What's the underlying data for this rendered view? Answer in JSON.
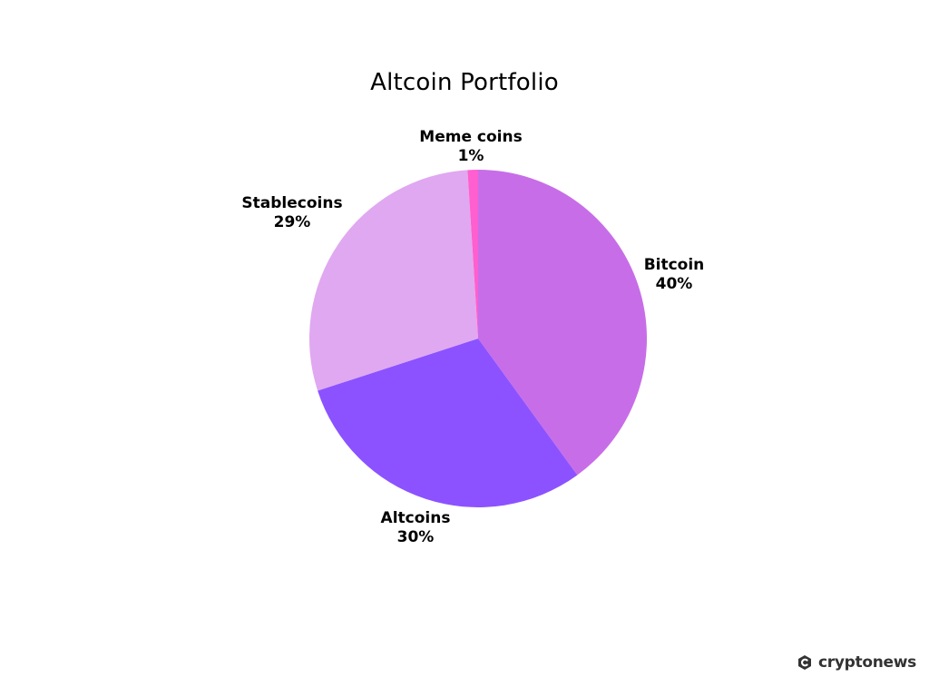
{
  "chart_data": {
    "type": "pie",
    "title": "Altcoin Portfolio",
    "slices": [
      {
        "label": "Bitcoin",
        "value": 40,
        "value_label": "40%",
        "color": "#c86de8"
      },
      {
        "label": "Altcoins",
        "value": 30,
        "value_label": "30%",
        "color": "#8c52ff"
      },
      {
        "label": "Stablecoins",
        "value": 29,
        "value_label": "29%",
        "color": "#e0a8f0"
      },
      {
        "label": "Meme coins",
        "value": 1,
        "value_label": "1%",
        "color": "#ff5fcf"
      }
    ],
    "start_angle": "12 o'clock",
    "direction": "clockwise",
    "legend": "none"
  },
  "brand": {
    "name": "cryptonews",
    "icon": "cryptonews-logo-icon"
  }
}
